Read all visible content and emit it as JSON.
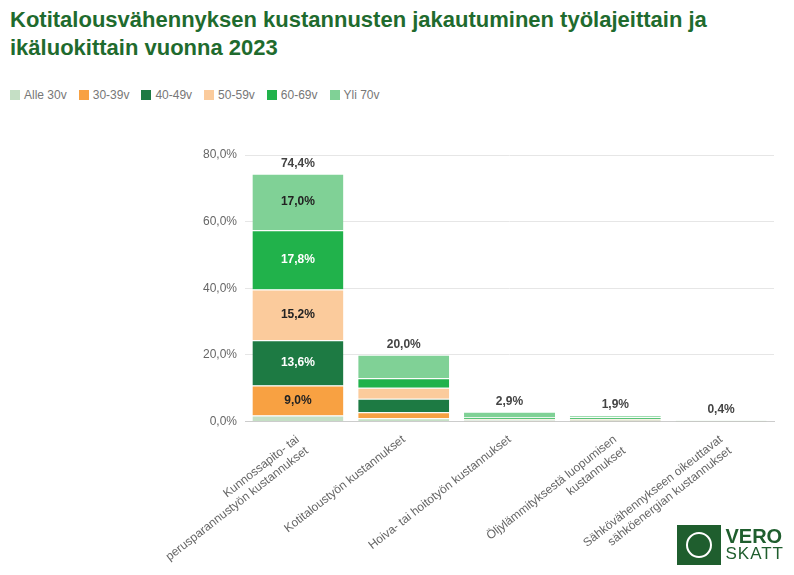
{
  "chart_data": {
    "type": "bar",
    "title": "Kotitalousvähennyksen kustannusten jakautuminen työlajeittain ja ikäluokittain vuonna 2023",
    "categories": [
      [
        "Kunnossapito- tai",
        "perusparannustyön kustannukset"
      ],
      [
        "Kotitaloustyön kustannukset"
      ],
      [
        "Hoiva- tai hoitotyön kustannukset"
      ],
      [
        "Öljylämmityksestä luopumisen",
        "kustannukset"
      ],
      [
        "Sähkövähennykseen oikeuttavat",
        "sähköenergian kustannukset"
      ]
    ],
    "series": [
      {
        "name": "Alle 30v",
        "color": "#c5dfc5",
        "values": [
          1.8,
          1.0,
          0.1,
          0.0,
          0.0
        ],
        "value_labels": [
          null,
          null,
          null,
          null,
          null
        ]
      },
      {
        "name": "30-39v",
        "color": "#f8a142",
        "values": [
          9.0,
          1.8,
          0.1,
          0.1,
          0.0
        ],
        "value_labels": [
          "9,0%",
          null,
          null,
          null,
          null
        ]
      },
      {
        "name": "40-49v",
        "color": "#1d7a43",
        "values": [
          13.6,
          4.0,
          0.2,
          0.2,
          0.1
        ],
        "value_labels": [
          "13,6%",
          null,
          null,
          null,
          null
        ]
      },
      {
        "name": "50-59v",
        "color": "#fbcb9c",
        "values": [
          15.2,
          3.3,
          0.3,
          0.4,
          0.1
        ],
        "value_labels": [
          "15,2%",
          null,
          null,
          null,
          null
        ]
      },
      {
        "name": "60-69v",
        "color": "#21b24b",
        "values": [
          17.8,
          2.9,
          0.5,
          0.6,
          0.1
        ],
        "value_labels": [
          "17,8%",
          null,
          null,
          null,
          null
        ]
      },
      {
        "name": "Yli 70v",
        "color": "#80d196",
        "values": [
          17.0,
          7.0,
          1.7,
          0.6,
          0.1
        ],
        "value_labels": [
          "17,0%",
          null,
          null,
          null,
          null
        ]
      }
    ],
    "totals": [
      74.4,
      20.0,
      2.9,
      1.9,
      0.4
    ],
    "total_labels": [
      "74,4%",
      "20,0%",
      "2,9%",
      "1,9%",
      "0,4%"
    ],
    "stacked": true,
    "data_labels": true,
    "ylim": [
      0,
      80
    ],
    "yticks": [
      {
        "value": 0,
        "label": "0,0%"
      },
      {
        "value": 20,
        "label": "20,0%"
      },
      {
        "value": 40,
        "label": "40,0%"
      },
      {
        "value": 60,
        "label": "60,0%"
      },
      {
        "value": 80,
        "label": "80,0%"
      }
    ],
    "grid": true,
    "legend": "top-left",
    "logo": [
      "VERO",
      "SKATT"
    ]
  }
}
